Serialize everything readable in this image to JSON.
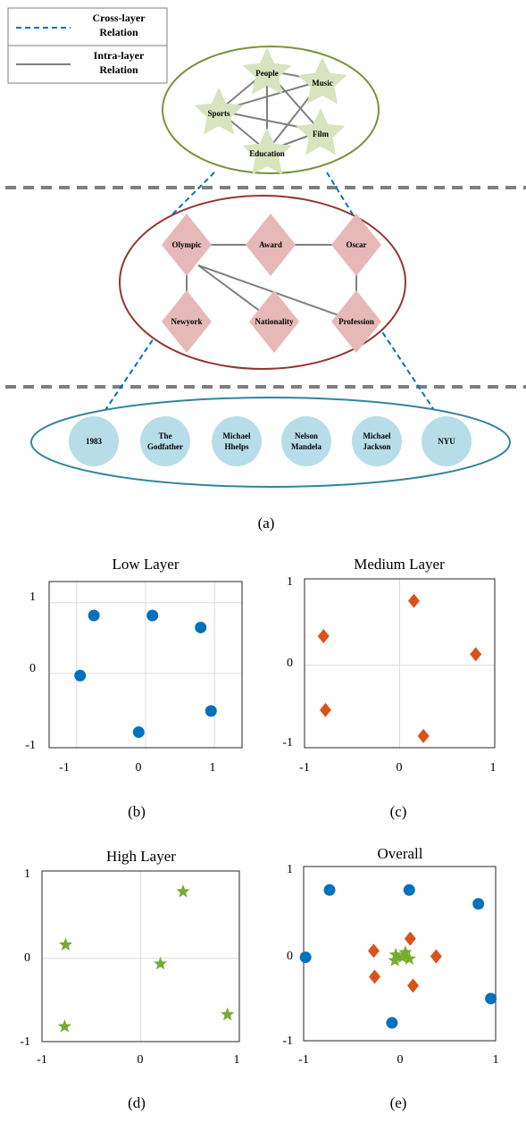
{
  "legend": {
    "cross_layer": [
      "Cross-layer",
      "Relation"
    ],
    "intra_layer": [
      "Intra-layer",
      "Relation"
    ]
  },
  "diagram": {
    "high_layer": {
      "nodes": [
        "People",
        "Music",
        "Sports",
        "Film",
        "Education"
      ],
      "edges": [
        [
          "People",
          "Music"
        ],
        [
          "People",
          "Sports"
        ],
        [
          "People",
          "Film"
        ],
        [
          "People",
          "Education"
        ],
        [
          "Music",
          "Sports"
        ],
        [
          "Music",
          "Education"
        ],
        [
          "Sports",
          "Film"
        ],
        [
          "Sports",
          "Education"
        ],
        [
          "Film",
          "Education"
        ]
      ]
    },
    "medium_layer": {
      "nodes": [
        "Olympic",
        "Award",
        "Oscar",
        "Newyork",
        "Nationality",
        "Profession"
      ],
      "edges": [
        [
          "Olympic",
          "Award"
        ],
        [
          "Award",
          "Oscar"
        ],
        [
          "Olympic",
          "Newyork"
        ],
        [
          "Oscar",
          "Profession"
        ],
        [
          "Olympic",
          "Nationality"
        ],
        [
          "Olympic",
          "Profession"
        ]
      ]
    },
    "low_layer": {
      "nodes": [
        [
          "1983"
        ],
        [
          "The",
          "Godfather"
        ],
        [
          "Michael",
          "Hhelps"
        ],
        [
          "Nelson",
          "Mandela"
        ],
        [
          "Michael",
          "Jackson"
        ],
        [
          "NYU"
        ]
      ]
    }
  },
  "colors": {
    "blue": "#0072BD",
    "orange": "#D95319",
    "green": "#77AC30",
    "high_ellipse": "#77933C",
    "medium_ellipse": "#943634",
    "low_ellipse": "#31859C",
    "star_fill": "#D7E4BD",
    "diamond_fill": "#E6B9B8",
    "circle_fill": "#B7DEE8"
  },
  "captions": {
    "a": "(a)",
    "b": "(b)",
    "c": "(c)",
    "d": "(d)",
    "e": "(e)"
  },
  "chart_data": [
    {
      "type": "scatter",
      "title": "Low Layer",
      "marker": "circle",
      "color": "#0072BD",
      "xlim": [
        -1.4,
        1.4
      ],
      "ylim": [
        -1.05,
        1.3
      ],
      "xticks": [
        "-1",
        "0",
        "1"
      ],
      "yticks": [
        "-1",
        "0",
        "1"
      ],
      "grid": true,
      "points": [
        [
          -0.75,
          0.82
        ],
        [
          0.1,
          0.82
        ],
        [
          0.8,
          0.65
        ],
        [
          -0.95,
          -0.03
        ],
        [
          0.95,
          -0.53
        ],
        [
          -0.1,
          -0.83
        ]
      ]
    },
    {
      "type": "scatter",
      "title": "Medium Layer",
      "marker": "diamond",
      "color": "#D95319",
      "xlim": [
        -1,
        1
      ],
      "ylim": [
        -1.05,
        1.1
      ],
      "xticks": [
        "-1",
        "0",
        "1"
      ],
      "yticks": [
        "-1",
        "0",
        "1"
      ],
      "grid": true,
      "points": [
        [
          0.15,
          0.82
        ],
        [
          -0.8,
          0.37
        ],
        [
          0.8,
          0.14
        ],
        [
          -0.78,
          -0.57
        ],
        [
          0.25,
          -0.9
        ]
      ]
    },
    {
      "type": "scatter",
      "title": "High Layer",
      "marker": "star",
      "color": "#77AC30",
      "xlim": [
        -1,
        1
      ],
      "ylim": [
        -1.05,
        1.1
      ],
      "xticks": [
        "-1",
        "0",
        "1"
      ],
      "yticks": [
        "-1",
        "0",
        "1"
      ],
      "grid": true,
      "points": [
        [
          0.43,
          0.84
        ],
        [
          -0.76,
          0.17
        ],
        [
          0.2,
          -0.07
        ],
        [
          -0.77,
          -0.86
        ],
        [
          0.88,
          -0.71
        ]
      ]
    },
    {
      "type": "scatter",
      "title": "Overall",
      "xlim": [
        -1,
        1
      ],
      "ylim": [
        -1.05,
        1.1
      ],
      "xticks": [
        "-1",
        "0",
        "1"
      ],
      "yticks": [
        "-1",
        "0",
        "1"
      ],
      "grid": false,
      "series": [
        {
          "marker": "circle",
          "color": "#0072BD",
          "points": [
            [
              -0.73,
              0.81
            ],
            [
              0.1,
              0.81
            ],
            [
              0.82,
              0.64
            ],
            [
              -0.98,
              -0.02
            ],
            [
              0.95,
              -0.53
            ],
            [
              -0.08,
              -0.83
            ]
          ]
        },
        {
          "marker": "diamond",
          "color": "#D95319",
          "points": [
            [
              -0.27,
              0.06
            ],
            [
              0.11,
              0.21
            ],
            [
              0.38,
              -0.01
            ],
            [
              -0.26,
              -0.26
            ],
            [
              0.14,
              -0.37
            ]
          ]
        },
        {
          "marker": "star",
          "color": "#77AC30",
          "points": [
            [
              -0.05,
              -0.06
            ],
            [
              0.06,
              0.04
            ],
            [
              -0.04,
              0.01
            ],
            [
              0.1,
              -0.04
            ],
            [
              0.03,
              -0.02
            ]
          ]
        }
      ]
    }
  ]
}
